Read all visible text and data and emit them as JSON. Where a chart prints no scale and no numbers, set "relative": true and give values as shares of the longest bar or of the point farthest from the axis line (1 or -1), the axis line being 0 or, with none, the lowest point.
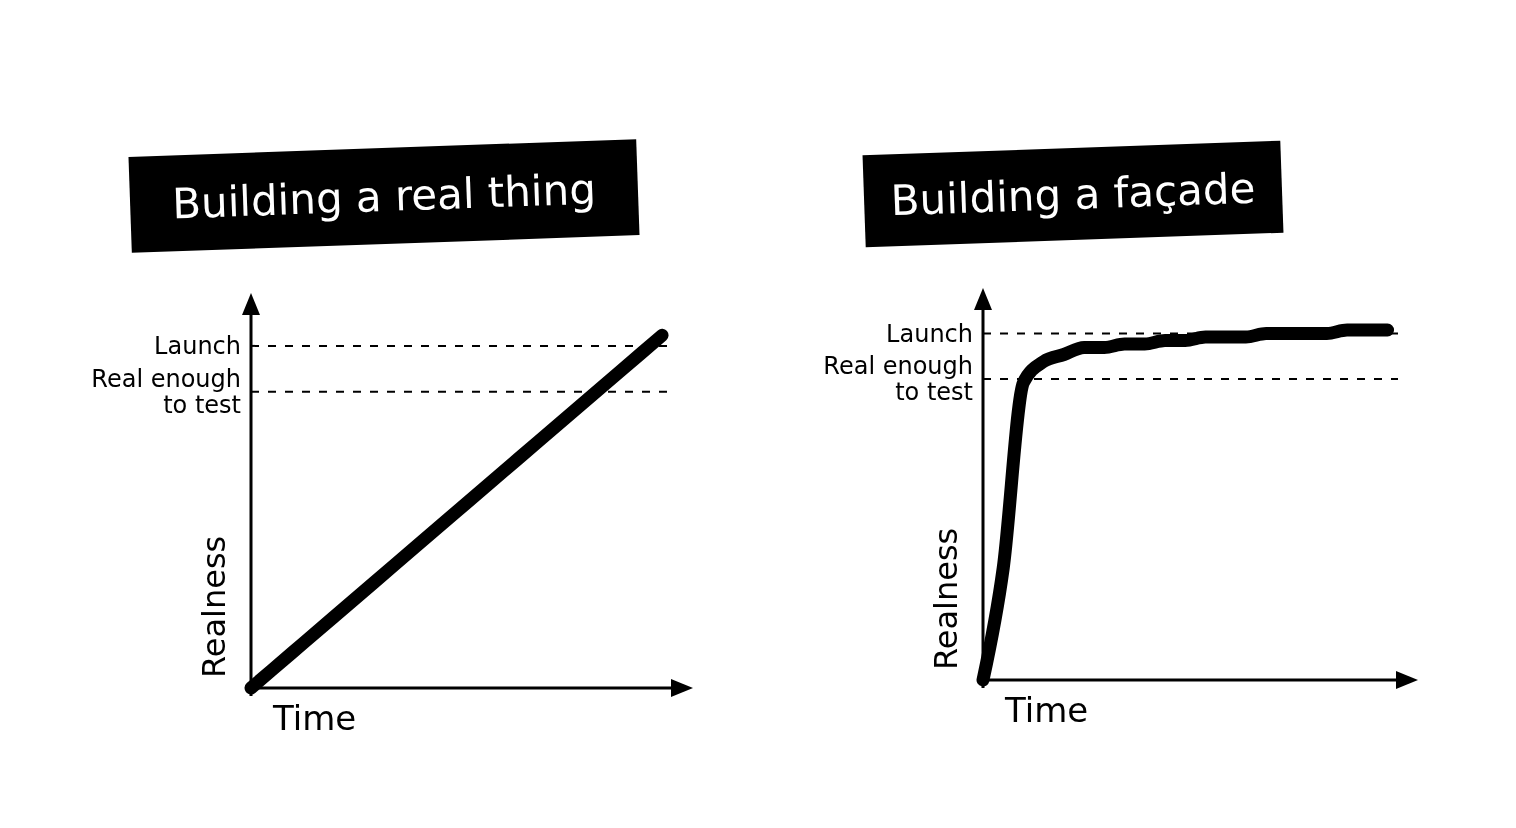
{
  "chart_data": [
    {
      "type": "line",
      "title": "Building a real thing",
      "xlabel": "Time",
      "ylabel": "Realness",
      "relative": true,
      "categories": [
        null,
        null,
        null,
        null,
        null,
        null,
        null,
        null,
        null,
        null,
        null
      ],
      "series": [
        {
          "color": "#000000",
          "values": [
            0,
            0.1,
            0.2,
            0.3,
            0.4,
            0.5,
            0.6,
            0.7,
            0.8,
            0.9,
            1
          ]
        }
      ],
      "ref_lines": [
        {
          "axis": "y",
          "value": 0.97,
          "label": "Launch",
          "line_style": "dashed"
        },
        {
          "axis": "y",
          "value": 0.84,
          "label": "Real enough to test",
          "line_style": "dashed"
        }
      ]
    },
    {
      "type": "line",
      "title": "Building a façade",
      "xlabel": "Time",
      "ylabel": "Realness",
      "relative": true,
      "categories": [
        null,
        null,
        null,
        null,
        null,
        null,
        null,
        null,
        null,
        null,
        null,
        null,
        null,
        null,
        null,
        null,
        null,
        null,
        null,
        null,
        null
      ],
      "series": [
        {
          "color": "#000000",
          "values": [
            0,
            0.32,
            0.85,
            0.91,
            0.93,
            0.95,
            0.95,
            0.96,
            0.96,
            0.97,
            0.97,
            0.98,
            0.98,
            0.98,
            0.99,
            0.99,
            0.99,
            0.99,
            1,
            1,
            1
          ]
        }
      ],
      "ref_lines": [
        {
          "axis": "y",
          "value": 0.99,
          "label": "Launch",
          "line_style": "dashed"
        },
        {
          "axis": "y",
          "value": 0.86,
          "label": "Real enough to test",
          "line_style": "dashed"
        }
      ]
    }
  ]
}
